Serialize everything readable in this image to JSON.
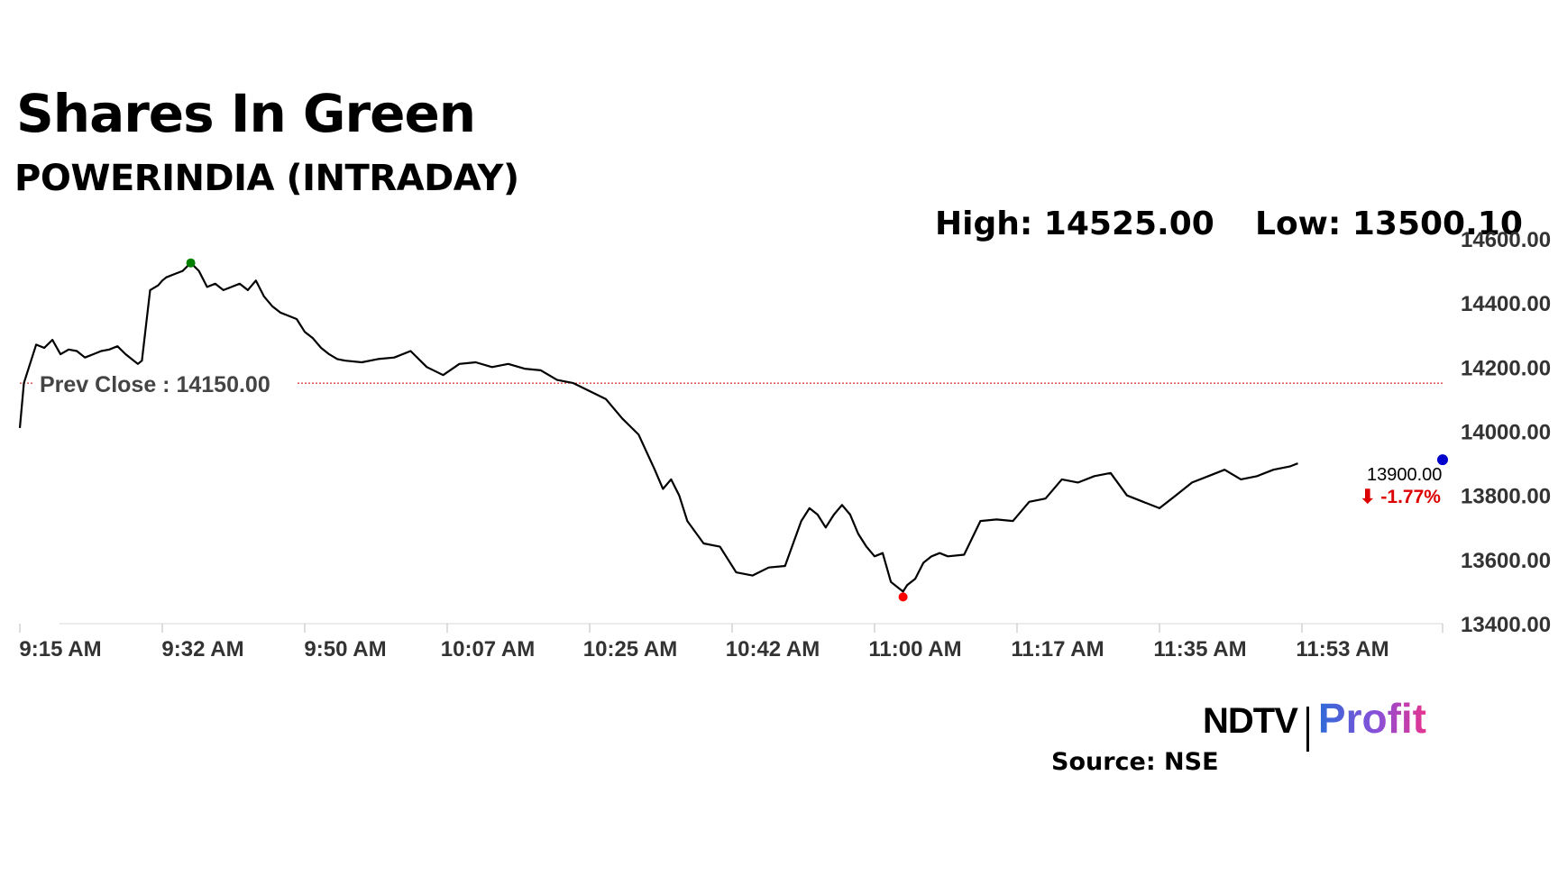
{
  "header": {
    "title": "Shares In Green",
    "subtitle": "POWERINDIA (INTRADAY)",
    "high_label": "High: 14525.00",
    "low_label": "Low: 13500.10"
  },
  "footer": {
    "brand_ndtv": "NDTV",
    "brand_profit": "Profit",
    "source": "Source: NSE"
  },
  "colors": {
    "line": "#000000",
    "prev_close": "#cc0000",
    "high_marker": "#008000",
    "low_marker": "#ff0000",
    "last_marker": "#0000cc",
    "change_negative": "#dd0000"
  },
  "chart_data": {
    "type": "line",
    "title": "POWERINDIA (INTRADAY)",
    "x_tick_labels": [
      "9:15 AM",
      "9:32 AM",
      "9:50 AM",
      "10:07 AM",
      "10:25 AM",
      "10:42 AM",
      "11:00 AM",
      "11:17 AM",
      "11:35 AM",
      "11:53 AM"
    ],
    "y_tick_labels": [
      "14600.00",
      "14400.00",
      "14200.00",
      "14000.00",
      "13800.00",
      "13600.00",
      "13400.00"
    ],
    "ylim": [
      13400,
      14600
    ],
    "xlim_minutes_from_open": [
      0,
      167
    ],
    "grid": false,
    "prev_close": 14150,
    "prev_close_label": "Prev Close : 14150.00",
    "high": 14525,
    "low": 13500.1,
    "last_price_label": "13900.00",
    "change_label": "⬇ -1.77%",
    "series": [
      {
        "x": [
          0,
          0.5,
          1,
          2,
          3,
          4,
          5,
          6,
          7,
          8,
          9,
          10,
          11,
          12,
          13,
          14,
          14.5,
          15,
          16,
          17,
          17.5,
          18,
          19,
          20,
          21,
          22,
          23,
          24,
          25,
          26,
          27,
          28,
          29,
          30,
          31,
          32,
          33,
          34,
          35,
          36,
          37,
          38,
          39,
          40,
          42,
          44,
          46,
          48,
          50,
          52,
          54,
          56,
          58,
          60,
          62,
          64,
          66,
          68,
          70,
          72,
          74,
          76,
          78,
          79,
          80,
          81,
          82,
          84,
          86,
          88,
          90,
          92,
          94,
          95,
          96,
          97,
          98,
          99,
          100,
          101,
          102,
          103,
          104,
          105,
          106,
          107,
          108,
          108.5,
          109,
          110,
          111,
          112,
          113,
          114,
          116,
          118,
          120,
          122,
          124,
          126,
          128,
          130,
          132,
          134,
          136,
          138,
          140,
          142,
          144,
          146,
          148,
          150,
          152,
          154,
          156,
          157
        ],
        "y": [
          14010,
          14150,
          14190,
          14270,
          14260,
          14285,
          14240,
          14255,
          14250,
          14230,
          14240,
          14250,
          14255,
          14265,
          14240,
          14220,
          14210,
          14220,
          14440,
          14455,
          14470,
          14480,
          14490,
          14500,
          14525,
          14500,
          14450,
          14460,
          14440,
          14450,
          14460,
          14440,
          14470,
          14420,
          14390,
          14370,
          14360,
          14350,
          14310,
          14290,
          14260,
          14240,
          14225,
          14220,
          14215,
          14225,
          14230,
          14250,
          14200,
          14175,
          14210,
          14215,
          14200,
          14210,
          14195,
          14190,
          14160,
          14150,
          14125,
          14100,
          14040,
          13990,
          13880,
          13820,
          13850,
          13800,
          13720,
          13650,
          13640,
          13560,
          13550,
          13575,
          13580,
          13650,
          13720,
          13760,
          13740,
          13700,
          13740,
          13770,
          13740,
          13680,
          13640,
          13610,
          13620,
          13530,
          13510,
          13500.1,
          13520,
          13540,
          13590,
          13610,
          13620,
          13610,
          13615,
          13720,
          13725,
          13720,
          13780,
          13790,
          13850,
          13840,
          13860,
          13870,
          13800,
          13780,
          13760,
          13800,
          13840,
          13860,
          13880,
          13850,
          13860,
          13880,
          13890,
          13900
        ]
      }
    ]
  }
}
